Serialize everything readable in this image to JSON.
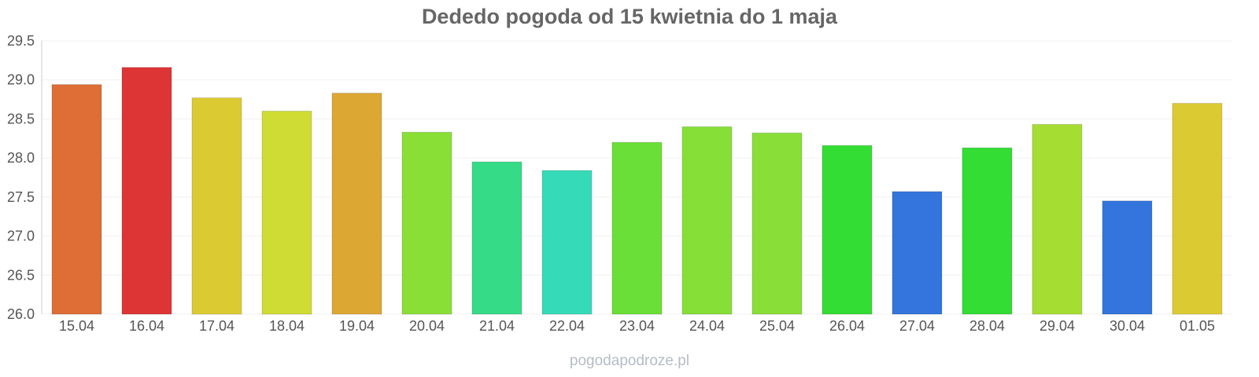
{
  "chart_data": {
    "type": "bar",
    "title": "Dededo pogoda od 15 kwietnia do 1 maja",
    "xlabel": "",
    "ylabel": "",
    "ylim": [
      26.0,
      29.5
    ],
    "yticks": [
      "26.0",
      "26.5",
      "27.0",
      "27.5",
      "28.0",
      "28.5",
      "29.0",
      "29.5"
    ],
    "grid": true,
    "legend": "none",
    "categories": [
      "15.04",
      "16.04",
      "17.04",
      "18.04",
      "19.04",
      "20.04",
      "21.04",
      "22.04",
      "23.04",
      "24.04",
      "25.04",
      "26.04",
      "27.04",
      "28.04",
      "29.04",
      "30.04",
      "01.05"
    ],
    "values": [
      28.94,
      29.16,
      28.77,
      28.6,
      28.83,
      28.33,
      27.95,
      27.84,
      28.2,
      28.4,
      28.32,
      28.16,
      27.57,
      28.13,
      28.43,
      27.45,
      28.7
    ],
    "colors": [
      "#de6e36",
      "#dd3535",
      "#dcca33",
      "#cfdc33",
      "#dca733",
      "#8adf37",
      "#35db87",
      "#35dbb8",
      "#6adf37",
      "#86df37",
      "#89df37",
      "#33dd33",
      "#3375dc",
      "#33dd33",
      "#a6dd33",
      "#3375dc",
      "#dcca33"
    ]
  },
  "watermark": "pogodapodroze.pl"
}
